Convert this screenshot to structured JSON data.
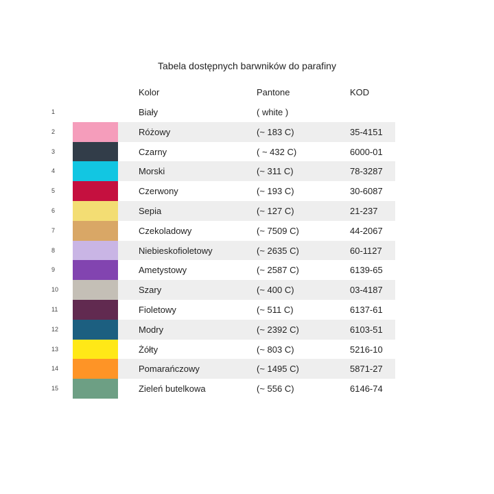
{
  "title": "Tabela dostępnych barwników do parafiny",
  "headers": {
    "kolor": "Kolor",
    "pantone": "Pantone",
    "kod": "KOD"
  },
  "rows": [
    {
      "num": "1",
      "name": "Biały",
      "pantone": "( white )",
      "code": "",
      "color": "#ffffff"
    },
    {
      "num": "2",
      "name": "Różowy",
      "pantone": "(~ 183 C)",
      "code": "35-4151",
      "color": "#f59dbb"
    },
    {
      "num": "3",
      "name": "Czarny",
      "pantone": "( ~ 432 C)",
      "code": "6000-01",
      "color": "#323d49"
    },
    {
      "num": "4",
      "name": "Morski",
      "pantone": "(~ 311 C)",
      "code": "78-3287",
      "color": "#12c6e2"
    },
    {
      "num": "5",
      "name": "Czerwony",
      "pantone": "(~ 193 C)",
      "code": "30-6087",
      "color": "#c5103f"
    },
    {
      "num": "6",
      "name": "Sepia",
      "pantone": "(~ 127 C)",
      "code": "21-237",
      "color": "#f3dd73"
    },
    {
      "num": "7",
      "name": "Czekoladowy",
      "pantone": "(~ 7509 C)",
      "code": "44-2067",
      "color": "#d9a766"
    },
    {
      "num": "8",
      "name": "Niebieskofioletowy",
      "pantone": "(~ 2635 C)",
      "code": "60-1127",
      "color": "#c9b5e5"
    },
    {
      "num": "9",
      "name": "Ametystowy",
      "pantone": "(~ 2587 C)",
      "code": "6139-65",
      "color": "#8244b0"
    },
    {
      "num": "10",
      "name": "Szary",
      "pantone": "(~ 400 C)",
      "code": "03-4187",
      "color": "#c4bfb6"
    },
    {
      "num": "11",
      "name": "Fioletowy",
      "pantone": "(~ 511 C)",
      "code": "6137-61",
      "color": "#612a50"
    },
    {
      "num": "12",
      "name": "Modry",
      "pantone": "(~ 2392 C)",
      "code": "6103-51",
      "color": "#1c5f80"
    },
    {
      "num": "13",
      "name": "Żółty",
      "pantone": "(~ 803 C)",
      "code": "5216-10",
      "color": "#ffe817"
    },
    {
      "num": "14",
      "name": "Pomarańczowy",
      "pantone": "(~ 1495 C)",
      "code": "5871-27",
      "color": "#fe9426"
    },
    {
      "num": "15",
      "name": "Zieleń butelkowa",
      "pantone": "(~ 556 C)",
      "code": "6146-74",
      "color": "#6d9f84"
    }
  ]
}
